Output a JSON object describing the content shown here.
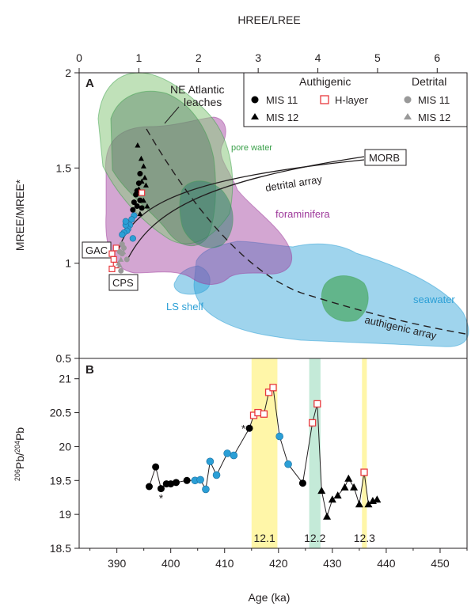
{
  "chart_data": [
    {
      "panel": "A",
      "type": "scatter",
      "xlabel": "HREE/LREE",
      "ylabel": "MREE/MREE*",
      "xlim": [
        0,
        6.5
      ],
      "ylim": [
        0.5,
        2.0
      ],
      "x_ticks": [
        "0",
        "1",
        "2",
        "3",
        "4",
        "5",
        "6"
      ],
      "y_ticks": [
        "0.5",
        "1",
        "1.5",
        "2"
      ],
      "legend": {
        "position": "top-right",
        "authigenic_header": "Authigenic",
        "detrital_header": "Detrital",
        "items": [
          {
            "label": "MIS 11",
            "marker": "circle",
            "color": "#000000"
          },
          {
            "label": "H-layer",
            "marker": "open-square",
            "color": "#e8383d"
          },
          {
            "label": "MIS 11",
            "marker": "circle",
            "color": "#999999"
          },
          {
            "label": "MIS 12",
            "marker": "triangle",
            "color": "#000000"
          },
          {
            "label": "MIS 12",
            "marker": "triangle",
            "color": "#999999"
          }
        ]
      },
      "regions": [
        {
          "label": "NE Atlantic leaches",
          "color": "#8cc97f"
        },
        {
          "label": "pore water",
          "color": "#3aa04a"
        },
        {
          "label": "foraminifera",
          "color": "#9e3a9b"
        },
        {
          "label": "LS shelf",
          "color": "#2b9fd6"
        },
        {
          "label": "seawater",
          "color": "#2b9fd6"
        }
      ],
      "labels": {
        "panel": "A",
        "leaches_line1": "NE Atlantic",
        "leaches_line2": "leaches",
        "pore_water": "pore water",
        "foraminifera": "foraminifera",
        "ls_shelf": "LS shelf",
        "seawater": "seawater",
        "detrital_array": "detrital array",
        "authigenic_array": "authigenic array",
        "morb": "MORB",
        "gac": "GAC",
        "cps": "CPS"
      },
      "endmembers": [
        {
          "name": "MORB",
          "x": 4.8,
          "y": 1.56
        },
        {
          "name": "GAC",
          "x": 0.6,
          "y": 1.07
        },
        {
          "name": "CPS",
          "x": 0.7,
          "y": 0.97
        }
      ],
      "series": [
        {
          "name": "MIS 11",
          "category": "authigenic",
          "x": [
            1.02,
            1.0,
            0.95,
            0.92,
            0.9,
            0.97,
            1.02,
            0.97,
            1.05
          ],
          "y": [
            1.47,
            1.42,
            1.36,
            1.32,
            1.28,
            1.3,
            1.33,
            1.38,
            1.29
          ]
        },
        {
          "name": "MIS 12",
          "category": "authigenic",
          "x": [
            0.98,
            1.04,
            1.08,
            1.1,
            1.12,
            1.05,
            1.0,
            1.08,
            1.14,
            1.02
          ],
          "y": [
            1.62,
            1.55,
            1.51,
            1.45,
            1.41,
            1.43,
            1.39,
            1.33,
            1.3,
            1.26
          ]
        },
        {
          "name": "H-layer",
          "category": "authigenic",
          "x": [
            1.05,
            0.62,
            0.55,
            0.58,
            0.62,
            0.55
          ],
          "y": [
            1.37,
            1.08,
            1.05,
            1.02,
            0.99,
            0.97
          ]
        },
        {
          "name": "blue (interglacial)",
          "category": "authigenic",
          "x": [
            0.92,
            0.88,
            0.85,
            0.82,
            0.8,
            0.78,
            0.75,
            0.72,
            0.9,
            0.78
          ],
          "y": [
            1.25,
            1.23,
            1.2,
            1.18,
            1.17,
            1.2,
            1.16,
            1.15,
            1.13,
            1.22
          ]
        },
        {
          "name": "MIS 11",
          "category": "detrital",
          "x": [
            0.72,
            0.75,
            0.68,
            0.72,
            0.8,
            0.7
          ],
          "y": [
            1.1,
            1.08,
            1.06,
            1.05,
            1.02,
            0.96
          ]
        },
        {
          "name": "MIS 12",
          "category": "detrital",
          "x": [
            0.66,
            0.7,
            0.74,
            0.68
          ],
          "y": [
            1.0,
            1.02,
            1.06,
            0.99
          ]
        }
      ]
    },
    {
      "panel": "B",
      "type": "line",
      "xlabel": "Age (ka)",
      "ylabel": "206Pb/204Pb",
      "xlim": [
        383,
        455
      ],
      "ylim": [
        18.5,
        21.3
      ],
      "x_ticks": [
        "390",
        "400",
        "410",
        "420",
        "430",
        "440",
        "450"
      ],
      "y_ticks": [
        "18.5",
        "19",
        "19.5",
        "20",
        "20.5",
        "21"
      ],
      "labels": {
        "panel": "B",
        "asterisk": "*"
      },
      "bands": [
        {
          "label": "12.1",
          "x0": 415.0,
          "x1": 419.8,
          "color": "#fff6a8"
        },
        {
          "label": "12.2",
          "x0": 425.7,
          "x1": 427.8,
          "color": "#c4ead8"
        },
        {
          "label": "12.3",
          "x0": 435.5,
          "x1": 436.4,
          "color": "#fff6a8"
        }
      ],
      "points": [
        {
          "age": 396.0,
          "pb": 19.41,
          "kind": "black-circle"
        },
        {
          "age": 397.2,
          "pb": 19.7,
          "kind": "black-circle"
        },
        {
          "age": 398.2,
          "pb": 19.38,
          "kind": "black-circle"
        },
        {
          "age": 399.2,
          "pb": 19.45,
          "kind": "black-circle"
        },
        {
          "age": 400.0,
          "pb": 19.45,
          "kind": "black-circle"
        },
        {
          "age": 401.0,
          "pb": 19.47,
          "kind": "black-circle"
        },
        {
          "age": 403.0,
          "pb": 19.5,
          "kind": "black-circle"
        },
        {
          "age": 404.5,
          "pb": 19.5,
          "kind": "blue-circle"
        },
        {
          "age": 405.5,
          "pb": 19.51,
          "kind": "blue-circle"
        },
        {
          "age": 406.5,
          "pb": 19.37,
          "kind": "blue-circle"
        },
        {
          "age": 407.3,
          "pb": 19.78,
          "kind": "blue-circle"
        },
        {
          "age": 408.5,
          "pb": 19.58,
          "kind": "blue-circle"
        },
        {
          "age": 410.5,
          "pb": 19.9,
          "kind": "blue-circle"
        },
        {
          "age": 411.7,
          "pb": 19.87,
          "kind": "blue-circle"
        },
        {
          "age": 414.6,
          "pb": 20.27,
          "kind": "black-circle"
        },
        {
          "age": 415.4,
          "pb": 20.46,
          "kind": "red-square"
        },
        {
          "age": 416.2,
          "pb": 20.5,
          "kind": "red-square"
        },
        {
          "age": 417.3,
          "pb": 20.48,
          "kind": "red-square"
        },
        {
          "age": 418.2,
          "pb": 20.8,
          "kind": "red-square"
        },
        {
          "age": 419.0,
          "pb": 20.87,
          "kind": "red-square"
        },
        {
          "age": 420.2,
          "pb": 20.15,
          "kind": "blue-circle"
        },
        {
          "age": 421.8,
          "pb": 19.74,
          "kind": "blue-circle"
        },
        {
          "age": 424.5,
          "pb": 19.46,
          "kind": "black-circle"
        },
        {
          "age": 426.3,
          "pb": 20.35,
          "kind": "red-square"
        },
        {
          "age": 427.2,
          "pb": 20.63,
          "kind": "red-square"
        },
        {
          "age": 428.0,
          "pb": 19.35,
          "kind": "black-triangle"
        },
        {
          "age": 429.0,
          "pb": 18.97,
          "kind": "black-triangle"
        },
        {
          "age": 430.0,
          "pb": 19.22,
          "kind": "black-triangle"
        },
        {
          "age": 431.0,
          "pb": 19.28,
          "kind": "black-triangle"
        },
        {
          "age": 432.3,
          "pb": 19.4,
          "kind": "black-triangle"
        },
        {
          "age": 433.0,
          "pb": 19.53,
          "kind": "black-triangle"
        },
        {
          "age": 434.0,
          "pb": 19.4,
          "kind": "black-triangle"
        },
        {
          "age": 435.0,
          "pb": 19.15,
          "kind": "black-triangle"
        },
        {
          "age": 435.9,
          "pb": 19.62,
          "kind": "red-square"
        },
        {
          "age": 436.7,
          "pb": 19.15,
          "kind": "black-triangle"
        },
        {
          "age": 437.5,
          "pb": 19.2,
          "kind": "black-triangle"
        },
        {
          "age": 438.3,
          "pb": 19.22,
          "kind": "black-triangle"
        }
      ],
      "asterisks": [
        {
          "age": 398.2,
          "pb": 19.25
        },
        {
          "age": 413.5,
          "pb": 20.28
        }
      ]
    }
  ]
}
